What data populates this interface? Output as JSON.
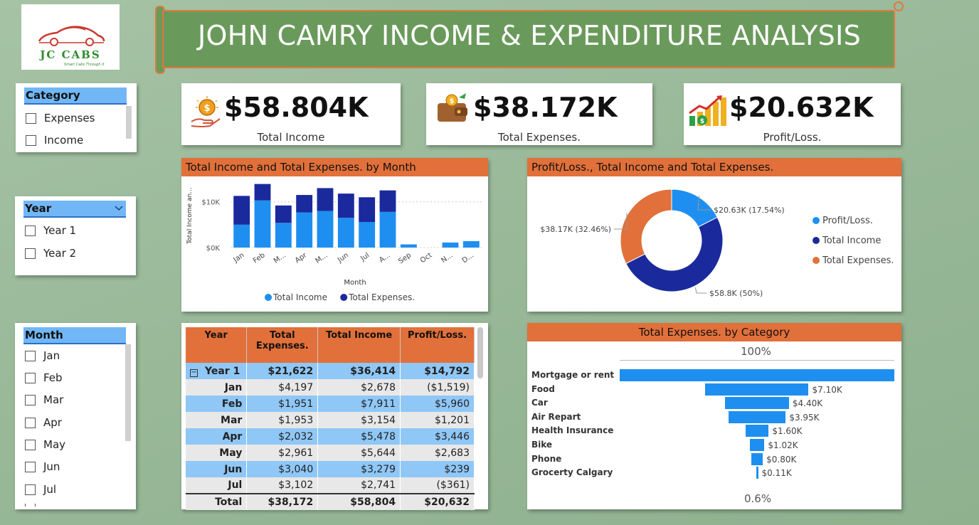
{
  "logo": {
    "name": "JC CABS",
    "tagline": "Smart Cabs Through it"
  },
  "header": {
    "title": "JOHN CAMRY INCOME & EXPENDITURE ANALYSIS"
  },
  "slicers": {
    "category": {
      "title": "Category",
      "items": [
        "Expenses",
        "Income"
      ]
    },
    "year": {
      "title": "Year",
      "items": [
        "Year 1",
        "Year 2"
      ]
    },
    "month": {
      "title": "Month",
      "items": [
        "Jan",
        "Feb",
        "Mar",
        "Apr",
        "May",
        "Jun",
        "Jul"
      ]
    }
  },
  "kpis": {
    "income": {
      "value": "$58.804K",
      "label": "Total Income"
    },
    "expenses": {
      "value": "$38.172K",
      "label": "Total Expenses."
    },
    "profit": {
      "value": "$20.632K",
      "label": "Profit/Loss."
    }
  },
  "colors": {
    "orange": "#e2703a",
    "light_blue": "#1e8ff0",
    "dark_blue": "#1a2a9c",
    "green": "#6a9a5b"
  },
  "bar_panel": {
    "title": "Total Income and Total Expenses. by Month"
  },
  "donut_panel": {
    "title": "Profit/Loss., Total Income and Total Expenses."
  },
  "funnel_panel": {
    "title": "Total Expenses. by Category",
    "top_pct": "100%",
    "bottom_pct": "0.6%"
  },
  "table": {
    "headers": [
      "Year",
      "Total Expenses.",
      "Total Income",
      "Profit/Loss."
    ],
    "year_row": {
      "label": "Year 1",
      "expenses": "$21,622",
      "income": "$36,414",
      "profit": "$14,792"
    },
    "rows": [
      {
        "label": "Jan",
        "expenses": "$4,197",
        "income": "$2,678",
        "profit": "($1,519)"
      },
      {
        "label": "Feb",
        "expenses": "$1,951",
        "income": "$7,911",
        "profit": "$5,960"
      },
      {
        "label": "Mar",
        "expenses": "$1,953",
        "income": "$3,154",
        "profit": "$1,201"
      },
      {
        "label": "Apr",
        "expenses": "$2,032",
        "income": "$5,478",
        "profit": "$3,446"
      },
      {
        "label": "May",
        "expenses": "$2,961",
        "income": "$5,644",
        "profit": "$2,683"
      },
      {
        "label": "Jun",
        "expenses": "$3,040",
        "income": "$3,279",
        "profit": "$239"
      },
      {
        "label": "Jul",
        "expenses": "$3,102",
        "income": "$2,741",
        "profit": "($361)"
      }
    ],
    "total_row": {
      "label": "Total",
      "expenses": "$38,172",
      "income": "$58,804",
      "profit": "$20,632"
    }
  },
  "chart_data": [
    {
      "type": "bar",
      "stacked": true,
      "title": "Total Income and Total Expenses. by Month",
      "xlabel": "Month",
      "ylabel": "Total Income an...",
      "categories": [
        "Jan",
        "Feb",
        "M...",
        "Apr",
        "M...",
        "Jun",
        "Jul",
        "A...",
        "Sep",
        "Oct",
        "N...",
        "D..."
      ],
      "ylim": [
        0,
        14000
      ],
      "yticks": [
        "$0K",
        "$10K"
      ],
      "legend": "bottom",
      "series": [
        {
          "name": "Total Income",
          "color": "#1e8ff0",
          "values": [
            5000,
            10300,
            5400,
            7700,
            8000,
            6500,
            5600,
            7800,
            700,
            0,
            1100,
            1400
          ]
        },
        {
          "name": "Total Expenses.",
          "color": "#1a2a9c",
          "values": [
            6300,
            3600,
            3800,
            3800,
            5000,
            5300,
            5400,
            4700,
            0,
            0,
            0,
            0
          ]
        }
      ]
    },
    {
      "type": "pie",
      "donut": true,
      "title": "Profit/Loss., Total Income and Total Expenses.",
      "legend": "right",
      "slices": [
        {
          "name": "Profit/Loss.",
          "value": 20.63,
          "label": "$20.63K (17.54%)",
          "color": "#1e8ff0"
        },
        {
          "name": "Total Income",
          "value": 58.8,
          "label": "$58.8K (50%)",
          "color": "#1a2a9c"
        },
        {
          "name": "Total Expenses.",
          "value": 38.17,
          "label": "$38.17K (32.46%)",
          "color": "#e2703a"
        }
      ]
    },
    {
      "type": "bar",
      "orientation": "funnel",
      "title": "Total Expenses. by Category",
      "categories": [
        "Mortgage or rent",
        "Food",
        "Car",
        "Air Repart",
        "Health Insurance",
        "Bike",
        "Phone",
        "Grocerty Calgary"
      ],
      "values": [
        18.9,
        7.1,
        4.4,
        3.95,
        1.6,
        1.02,
        0.8,
        0.11
      ],
      "value_labels": [
        "",
        "$7.10K",
        "$4.40K",
        "$3.95K",
        "$1.60K",
        "$1.02K",
        "$0.80K",
        "$0.11K"
      ]
    }
  ]
}
